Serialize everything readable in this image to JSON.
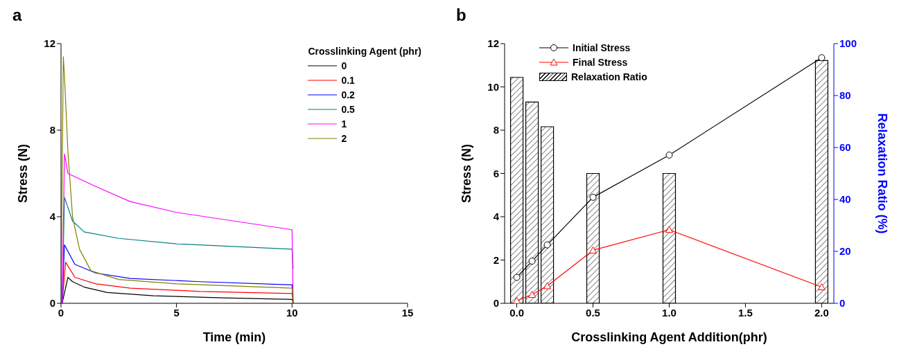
{
  "chart_data": [
    {
      "type": "line",
      "title": "a",
      "xlabel": "Time (min)",
      "ylabel": "Stress (N)",
      "legend_title": "Crosslinking Agent (phr)",
      "legend": "top right",
      "xlim": [
        0,
        15
      ],
      "xticks": [
        0,
        5,
        10,
        15
      ],
      "ylim": [
        0,
        12
      ],
      "yticks": [
        0,
        4,
        8,
        12
      ],
      "series": [
        {
          "name": "0",
          "color": "#000000",
          "x": [
            0.05,
            0.3,
            0.5,
            1,
            2,
            4,
            7,
            10,
            10.05
          ],
          "values": [
            0,
            1.2,
            1.0,
            0.75,
            0.5,
            0.35,
            0.25,
            0.18,
            0
          ]
        },
        {
          "name": "0.1",
          "color": "#ff0000",
          "x": [
            0.05,
            0.2,
            0.6,
            1.5,
            3,
            6,
            10,
            10.05
          ],
          "values": [
            0,
            1.9,
            1.2,
            0.9,
            0.7,
            0.55,
            0.45,
            0
          ]
        },
        {
          "name": "0.2",
          "color": "#0000ff",
          "x": [
            0.05,
            0.15,
            0.6,
            1.5,
            3,
            6,
            10,
            10.05
          ],
          "values": [
            0,
            2.7,
            1.8,
            1.4,
            1.15,
            1.0,
            0.85,
            0
          ]
        },
        {
          "name": "0.5",
          "color": "#008080",
          "x": [
            0.05,
            0.15,
            0.5,
            1,
            2.5,
            5,
            10,
            10.05
          ],
          "values": [
            0,
            4.9,
            3.8,
            3.3,
            3.0,
            2.75,
            2.5,
            1.6
          ]
        },
        {
          "name": "1",
          "color": "#ff00ff",
          "x": [
            0.05,
            0.15,
            0.3,
            1.5,
            3,
            5,
            7.5,
            10,
            10.05
          ],
          "values": [
            0,
            6.9,
            6.0,
            5.4,
            4.7,
            4.2,
            3.8,
            3.4,
            0
          ]
        },
        {
          "name": "2",
          "color": "#808000",
          "x": [
            0,
            0.1,
            0.15,
            0.3,
            0.5,
            0.8,
            1.3,
            2.5,
            5,
            10,
            10.05
          ],
          "values": [
            0,
            11.4,
            10.5,
            7,
            4,
            2.5,
            1.5,
            1.1,
            0.9,
            0.7,
            0
          ]
        }
      ]
    },
    {
      "type": "line",
      "title": "b",
      "xlabel": "Crosslinking Agent Addition(phr)",
      "ylabel": "Stress (N)",
      "y2label": "Relaxation Ratio (%)",
      "legend": "top left",
      "x": [
        0,
        0.1,
        0.2,
        0.5,
        1.0,
        2.0
      ],
      "xlim": [
        -0.08,
        2.08
      ],
      "xticks": [
        {
          "value": 0,
          "label": "0.0"
        },
        0.5,
        {
          "value": 1,
          "label": "1.0"
        },
        1.5,
        {
          "value": 2,
          "label": "2.0"
        }
      ],
      "ylim": [
        0,
        12
      ],
      "yticks": [
        0,
        2,
        4,
        6,
        8,
        10,
        12
      ],
      "y2lim": [
        0,
        100
      ],
      "y2ticks": [
        0,
        20,
        40,
        60,
        80,
        100
      ],
      "series": [
        {
          "name": "Initial Stress",
          "marker": "circle",
          "color": "#000000",
          "values": [
            1.2,
            1.95,
            2.7,
            4.9,
            6.85,
            11.35
          ]
        },
        {
          "name": "Final Stress",
          "marker": "triangle",
          "color": "#ff0000",
          "values": [
            0.12,
            0.4,
            0.8,
            2.45,
            3.4,
            0.75
          ]
        },
        {
          "name": "Relaxation Ratio",
          "type": "bar",
          "axis": "y2",
          "color": "#000000",
          "values": [
            87,
            77.5,
            68,
            50,
            50,
            93.5
          ]
        }
      ]
    }
  ]
}
